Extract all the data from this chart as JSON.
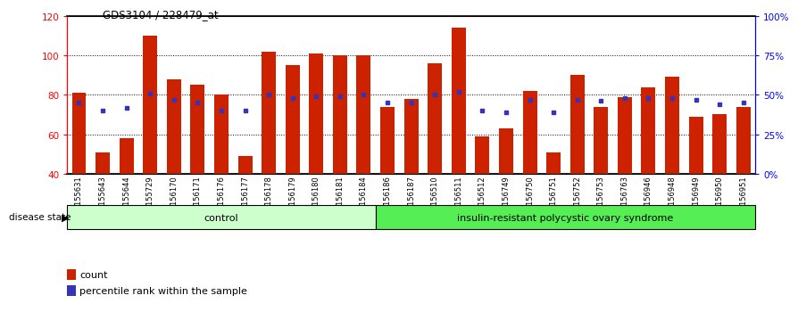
{
  "title": "GDS3104 / 228479_at",
  "samples": [
    "GSM155631",
    "GSM155643",
    "GSM155644",
    "GSM155729",
    "GSM156170",
    "GSM156171",
    "GSM156176",
    "GSM156177",
    "GSM156178",
    "GSM156179",
    "GSM156180",
    "GSM156181",
    "GSM156184",
    "GSM156186",
    "GSM156187",
    "GSM156510",
    "GSM156511",
    "GSM156512",
    "GSM156749",
    "GSM156750",
    "GSM156751",
    "GSM156752",
    "GSM156753",
    "GSM156763",
    "GSM156946",
    "GSM156948",
    "GSM156949",
    "GSM156950",
    "GSM156951"
  ],
  "bar_values": [
    81,
    51,
    58,
    110,
    88,
    85,
    80,
    49,
    102,
    95,
    101,
    100,
    100,
    74,
    78,
    96,
    114,
    59,
    63,
    82,
    51,
    90,
    74,
    79,
    84,
    89,
    69,
    70,
    74
  ],
  "dot_pct": [
    45,
    40,
    42,
    51,
    47,
    45,
    40,
    40,
    50,
    48,
    49,
    49,
    50,
    45,
    45,
    50,
    52,
    40,
    39,
    47,
    39,
    47,
    46,
    48,
    48,
    48,
    47,
    44,
    45
  ],
  "control_count": 13,
  "ylim_left": [
    40,
    120
  ],
  "right_ticks": [
    0,
    25,
    50,
    75,
    100
  ],
  "right_tick_labels": [
    "0%",
    "25%",
    "50%",
    "75%",
    "100%"
  ],
  "left_ticks": [
    40,
    60,
    80,
    100,
    120
  ],
  "bar_color": "#CC2200",
  "dot_color": "#3333BB",
  "control_label": "control",
  "disease_label": "insulin-resistant polycystic ovary syndrome",
  "disease_state_label": "disease state",
  "legend_count": "count",
  "legend_pct": "percentile rank within the sample",
  "bg_color_control": "#CCFFCC",
  "bg_color_disease": "#55EE55"
}
